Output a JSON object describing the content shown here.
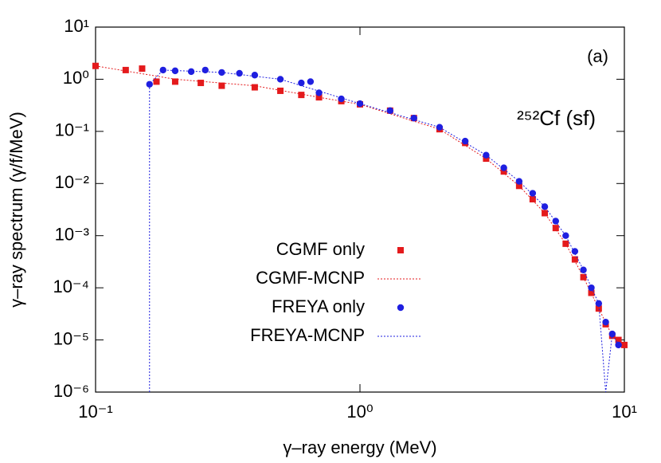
{
  "chart_data": {
    "type": "scatter",
    "xlabel": "γ–ray energy (MeV)",
    "ylabel": "γ–ray spectrum (γ/f/MeV)",
    "annotations": [
      "(a)",
      "²⁵²Cf (sf)"
    ],
    "xscale": "log",
    "yscale": "log",
    "xlim": [
      0.1,
      10
    ],
    "ylim": [
      1e-06,
      10
    ],
    "xticks": [
      {
        "value": 0.1,
        "label": "10⁻¹"
      },
      {
        "value": 1,
        "label": "10⁰"
      },
      {
        "value": 10,
        "label": "10¹"
      }
    ],
    "yticks": [
      {
        "value": 1e-06,
        "label": "10⁻⁶"
      },
      {
        "value": 1e-05,
        "label": "10⁻⁵"
      },
      {
        "value": 0.0001,
        "label": "10⁻⁴"
      },
      {
        "value": 0.001,
        "label": "10⁻³"
      },
      {
        "value": 0.01,
        "label": "10⁻²"
      },
      {
        "value": 0.1,
        "label": "10⁻¹"
      },
      {
        "value": 1,
        "label": "10⁰"
      },
      {
        "value": 10,
        "label": "10¹"
      }
    ],
    "legend": "center-left",
    "series": [
      {
        "name": "CGMF only",
        "color": "#e41a1c",
        "style": "square",
        "x": [
          0.1,
          0.13,
          0.15,
          0.17,
          0.2,
          0.25,
          0.3,
          0.4,
          0.5,
          0.6,
          0.7,
          0.85,
          1,
          1.3,
          1.6,
          2,
          2.5,
          3,
          3.5,
          4,
          4.5,
          5,
          5.5,
          6,
          6.5,
          7,
          7.5,
          8,
          8.5,
          9,
          9.5,
          10
        ],
        "values": [
          1.8,
          1.5,
          1.6,
          0.9,
          0.9,
          0.85,
          0.75,
          0.7,
          0.6,
          0.5,
          0.45,
          0.38,
          0.33,
          0.25,
          0.18,
          0.11,
          0.06,
          0.03,
          0.017,
          0.009,
          0.005,
          0.0027,
          0.0014,
          0.0007,
          0.00035,
          0.00016,
          8e-05,
          4e-05,
          2e-05,
          1.2e-05,
          1e-05,
          8e-06
        ]
      },
      {
        "name": "CGMF-MCNP",
        "color": "#e41a1c",
        "style": "dotted",
        "x": [
          0.1,
          0.2,
          0.4,
          0.7,
          1,
          2,
          3,
          4,
          5,
          6,
          7,
          8,
          9,
          10
        ],
        "values": [
          1.8,
          1.0,
          0.75,
          0.45,
          0.33,
          0.11,
          0.03,
          0.009,
          0.0027,
          0.0007,
          0.00016,
          4e-05,
          1.2e-05,
          8e-06
        ]
      },
      {
        "name": "FREYA only",
        "color": "#1f1fe0",
        "style": "circle",
        "x": [
          0.16,
          0.18,
          0.2,
          0.23,
          0.26,
          0.3,
          0.35,
          0.4,
          0.5,
          0.6,
          0.65,
          0.7,
          0.85,
          1,
          1.3,
          1.6,
          2,
          2.5,
          3,
          3.5,
          4,
          4.5,
          5,
          5.5,
          6,
          6.5,
          7,
          7.5,
          8,
          8.5,
          9,
          9.5
        ],
        "values": [
          0.8,
          1.5,
          1.45,
          1.4,
          1.5,
          1.35,
          1.3,
          1.2,
          1.0,
          0.85,
          0.9,
          0.55,
          0.42,
          0.34,
          0.25,
          0.18,
          0.12,
          0.065,
          0.035,
          0.02,
          0.011,
          0.0065,
          0.0036,
          0.0019,
          0.001,
          0.0005,
          0.00022,
          0.0001,
          5e-05,
          2.2e-05,
          1.3e-05,
          8e-06
        ]
      },
      {
        "name": "FREYA-MCNP",
        "color": "#1f1fe0",
        "style": "dotted",
        "x": [
          0.16,
          0.16,
          0.18,
          0.3,
          0.5,
          1,
          2,
          3,
          4,
          5,
          6,
          7,
          8,
          8.5,
          9,
          9.5
        ],
        "values": [
          1e-06,
          0.8,
          1.5,
          1.35,
          1.0,
          0.34,
          0.12,
          0.035,
          0.011,
          0.0036,
          0.001,
          0.00022,
          5e-05,
          1e-06,
          1.3e-05,
          8e-06
        ]
      }
    ]
  }
}
